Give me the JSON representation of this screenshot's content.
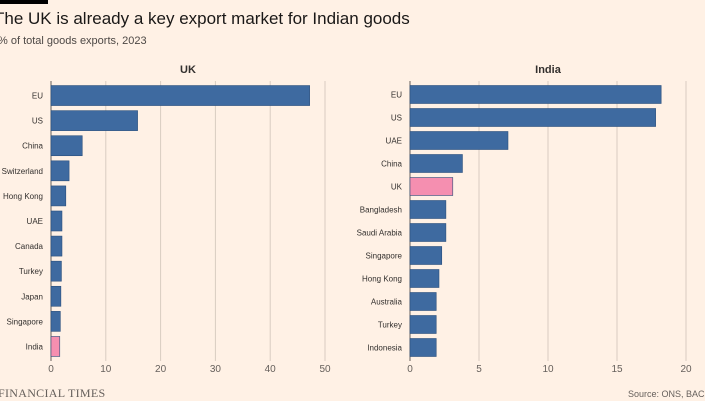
{
  "header": {
    "title": "The UK is already a key export market for Indian goods",
    "subtitle": "% of total goods exports, 2023"
  },
  "footer": {
    "left": "FINANCIAL TIMES",
    "right": "Source: ONS, BAC"
  },
  "colors": {
    "bar": "#3e6aa0",
    "highlight": "#f58fb0",
    "background": "#fff1e5",
    "grid": "#d9ccc1"
  },
  "chart_data": [
    {
      "type": "bar",
      "orientation": "horizontal",
      "title": "UK",
      "categories": [
        "EU",
        "US",
        "China",
        "Switzerland",
        "Hong Kong",
        "UAE",
        "Canada",
        "Turkey",
        "Japan",
        "Singapore",
        "India"
      ],
      "values": [
        47.2,
        15.8,
        5.7,
        3.3,
        2.7,
        2.0,
        2.0,
        1.9,
        1.8,
        1.7,
        1.6
      ],
      "highlight": "India",
      "xlim": [
        0,
        50
      ],
      "xticks": [
        "0",
        "10",
        "20",
        "30",
        "40",
        "50"
      ],
      "grid": true
    },
    {
      "type": "bar",
      "orientation": "horizontal",
      "title": "India",
      "categories": [
        "EU",
        "US",
        "UAE",
        "China",
        "UK",
        "Bangladesh",
        "Saudi Arabia",
        "Singapore",
        "Hong Kong",
        "Australia",
        "Turkey",
        "Indonesia"
      ],
      "values": [
        18.2,
        17.8,
        7.1,
        3.8,
        3.1,
        2.6,
        2.6,
        2.3,
        2.1,
        1.9,
        1.9,
        1.9
      ],
      "highlight": "UK",
      "xlim": [
        0,
        20
      ],
      "xticks": [
        "0",
        "5",
        "10",
        "15",
        "20"
      ],
      "grid": true
    }
  ]
}
